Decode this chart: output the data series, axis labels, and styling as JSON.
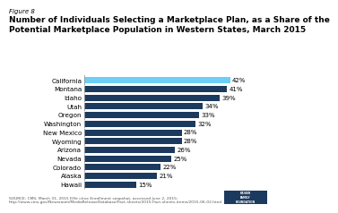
{
  "figure_label": "Figure 8",
  "title_line1": "Number of Individuals Selecting a Marketplace Plan, as a Share of the",
  "title_line2": "Potential Marketplace Population in Western States, March 2015",
  "states": [
    "Hawaii",
    "Alaska",
    "Colorado",
    "Nevada",
    "Arizona",
    "Wyoming",
    "New Mexico",
    "Washington",
    "Oregon",
    "Utah",
    "Idaho",
    "Montana",
    "California"
  ],
  "values": [
    15,
    21,
    22,
    25,
    26,
    28,
    28,
    32,
    33,
    34,
    39,
    41,
    42
  ],
  "bar_color_default": "#1b3a5e",
  "bar_color_highlight": "#6dcff6",
  "highlight_index": 12,
  "xlim": [
    0,
    48
  ],
  "source_text": "SOURCE: CMS, March 31, 2015 Effe ctive Enrollment snapshot, accessed June 2, 2015: http://www.cms.gov/Newsroom/MediaReleaseDatabase/Fact-sheets/2015-Fact-sheets-items/2015-06-02.html",
  "title_fontsize": 6.5,
  "figure_label_fontsize": 5.0,
  "bar_label_fontsize": 5.0,
  "ytick_fontsize": 5.2,
  "source_fontsize": 3.2,
  "background_color": "#ffffff",
  "logo_color": "#1b3a5e",
  "axis_line_color": "#999999"
}
